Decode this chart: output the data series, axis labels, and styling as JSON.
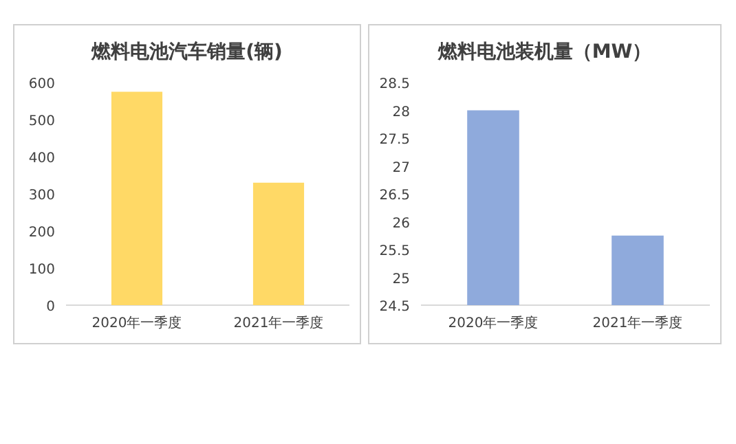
{
  "chart_data": [
    {
      "type": "bar",
      "title": "燃料电池汽车销量(辆)",
      "categories": [
        "2020年一季度",
        "2021年一季度"
      ],
      "values": [
        575,
        330
      ],
      "color": "#ffd966",
      "ylim": [
        0,
        600
      ],
      "yticks": [
        0,
        100,
        200,
        300,
        400,
        500,
        600
      ]
    },
    {
      "type": "bar",
      "title": "燃料电池装机量（MW）",
      "categories": [
        "2020年一季度",
        "2021年一季度"
      ],
      "values": [
        28.0,
        25.75
      ],
      "color": "#8faadc",
      "ylim": [
        24.5,
        28.5
      ],
      "yticks": [
        24.5,
        25,
        25.5,
        26,
        26.5,
        27,
        27.5,
        28,
        28.5
      ]
    }
  ]
}
